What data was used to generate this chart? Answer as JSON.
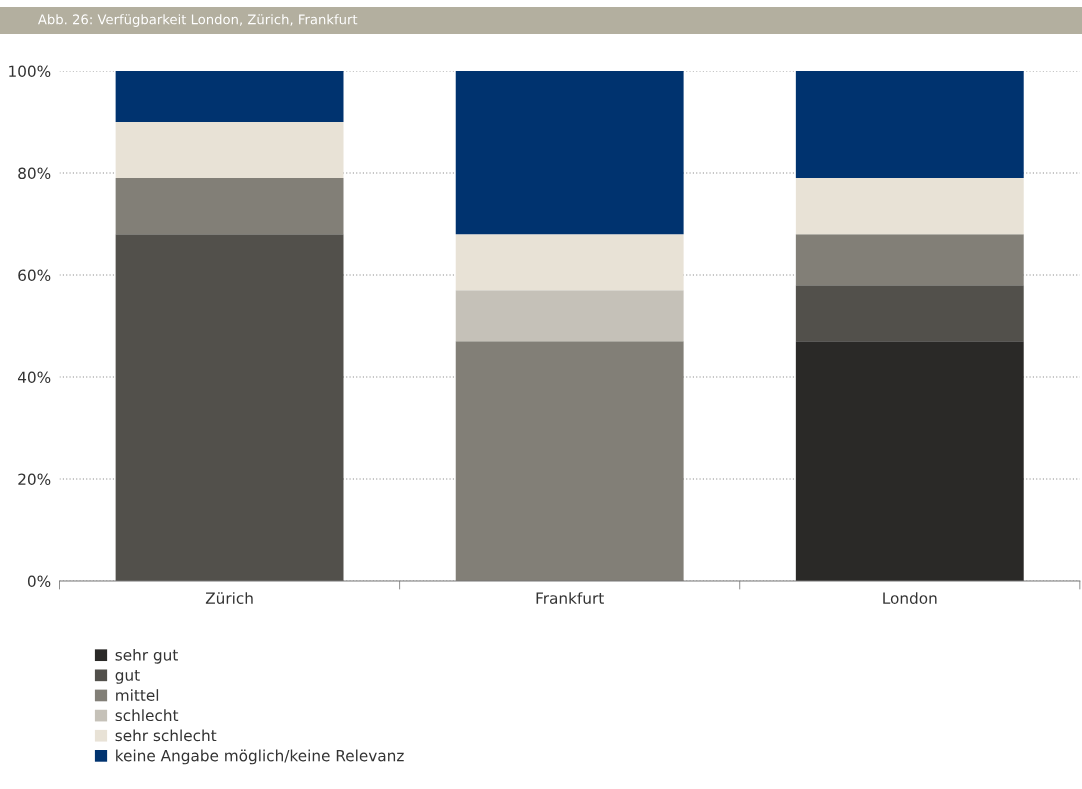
{
  "chart_data": {
    "type": "bar",
    "title": "Abb. 26: Verfügbarkeit London, Zürich, Frankfurt",
    "categories": [
      "Zürich",
      "Frankfurt",
      "London"
    ],
    "stacked": true,
    "series": [
      {
        "name": "sehr gut",
        "color": "#2a2927",
        "values": [
          0,
          0,
          47
        ]
      },
      {
        "name": "gut",
        "color": "#52504b",
        "values": [
          68,
          0,
          11
        ]
      },
      {
        "name": "mittel",
        "color": "#827f77",
        "values": [
          11,
          47,
          10
        ]
      },
      {
        "name": "schlecht",
        "color": "#c5c1b8",
        "values": [
          0,
          10,
          0
        ]
      },
      {
        "name": "sehr schlecht",
        "color": "#e8e2d6",
        "values": [
          11,
          11,
          11
        ]
      },
      {
        "name": "keine Angabe möglich/keine Relevanz",
        "color": "#00336f",
        "values": [
          10,
          32,
          21
        ]
      }
    ],
    "ylim": [
      0,
      100
    ],
    "yticks": [
      {
        "value": 0,
        "label": "0%"
      },
      {
        "value": 20,
        "label": "20%"
      },
      {
        "value": 40,
        "label": "40%"
      },
      {
        "value": 60,
        "label": "60%"
      },
      {
        "value": 80,
        "label": "80%"
      },
      {
        "value": 100,
        "label": "100%"
      }
    ],
    "grid": "y",
    "legend": "bottom left"
  }
}
